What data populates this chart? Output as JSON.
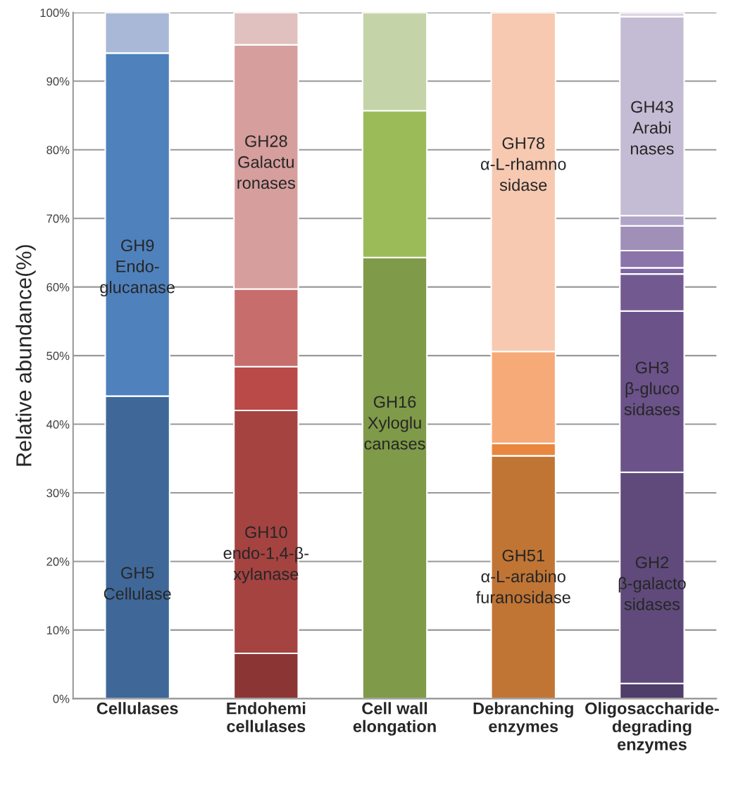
{
  "chart_data": {
    "type": "bar",
    "stacked": true,
    "ylabel": "Relative abundance(%)",
    "categories": [
      "Cellulases",
      "Endohemi\ncellulases",
      "Cell wall\nelongation",
      "Debranching\nenzymes",
      "Oligosaccharide-\ndegrading\nenzymes"
    ],
    "series": [
      {
        "values": [
          44.1,
          6.6,
          64.3,
          35.4,
          2.2
        ],
        "colors": [
          "#3f6899",
          "#8b3535",
          "#7f9a48",
          "#c07535",
          "#4f3d6a"
        ]
      },
      {
        "values": [
          50.0,
          35.4,
          21.4,
          1.8,
          30.8
        ],
        "colors": [
          "#4f81bd",
          "#a54341",
          "#9bbb59",
          "#e8873d",
          "#5f4a7b"
        ]
      },
      {
        "values": [
          5.9,
          6.4,
          14.3,
          13.4,
          23.5
        ],
        "colors": [
          "#a9b8d6",
          "#b94a48",
          "#c4d4a8",
          "#f6aa78",
          "#6b5289"
        ]
      },
      {
        "values": [
          null,
          11.3,
          null,
          49.4,
          5.4
        ],
        "colors": [
          null,
          "#c76e6c",
          null,
          "#f7c9b1",
          "#725a91"
        ]
      },
      {
        "values": [
          null,
          35.6,
          null,
          null,
          0.9
        ],
        "colors": [
          null,
          "#d69e9d",
          null,
          null,
          "#7c65a0"
        ]
      },
      {
        "values": [
          null,
          4.7,
          null,
          null,
          2.5
        ],
        "colors": [
          null,
          "#e1c0c0",
          null,
          null,
          "#8a74aa"
        ]
      },
      {
        "values": [
          null,
          null,
          null,
          null,
          3.6
        ],
        "colors": [
          null,
          null,
          null,
          null,
          "#a090b8"
        ]
      },
      {
        "values": [
          null,
          null,
          null,
          null,
          1.5
        ],
        "colors": [
          null,
          null,
          null,
          null,
          "#b0a5c6"
        ]
      },
      {
        "values": [
          null,
          null,
          null,
          null,
          29.0
        ],
        "colors": [
          null,
          null,
          null,
          null,
          "#c4bbd4"
        ]
      },
      {
        "values": [
          null,
          null,
          null,
          null,
          0.6
        ],
        "colors": [
          null,
          null,
          null,
          null,
          "#ddd6e6"
        ]
      }
    ],
    "ylim": [
      0,
      100
    ],
    "yticks": [
      {
        "value": 0,
        "label": "0%"
      },
      {
        "value": 10,
        "label": "10%"
      },
      {
        "value": 20,
        "label": "20%"
      },
      {
        "value": 30,
        "label": "30%"
      },
      {
        "value": 40,
        "label": "40%"
      },
      {
        "value": 50,
        "label": "50%"
      },
      {
        "value": 60,
        "label": "60%"
      },
      {
        "value": 70,
        "label": "70%"
      },
      {
        "value": 80,
        "label": "80%"
      },
      {
        "value": 90,
        "label": "90%"
      },
      {
        "value": 100,
        "label": "100%"
      }
    ],
    "grid": "y",
    "legend": false,
    "annotations": [
      "GH5\nCellulase",
      "GH9\nEndo-\nglucanase",
      "GH10\nendo-1,4-β-\nxylanase",
      "GH28\nGalactu\nronases",
      "GH16\nXyloglu\ncanases",
      "GH51\nα-L-arabino\nfuranosidase",
      "GH78\nα-L-rhamno\nsidase",
      "GH2\nβ-galacto\nsidases",
      "GH3\nβ-gluco\nsidases",
      "GH43\nArabi\nnases"
    ]
  }
}
